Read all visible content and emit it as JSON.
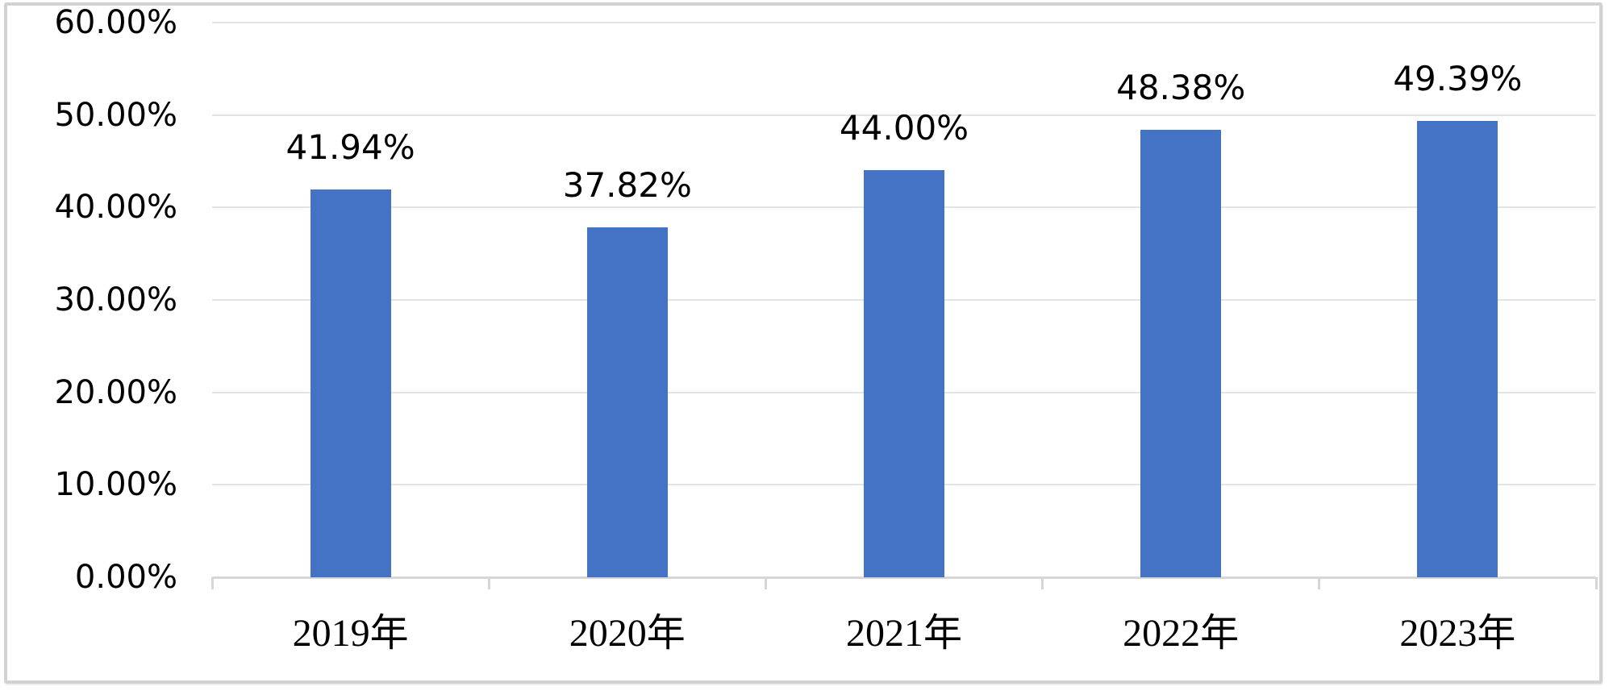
{
  "chart_data": {
    "type": "bar",
    "title": "",
    "xlabel": "",
    "ylabel": "",
    "categories": [
      "2019年",
      "2020年",
      "2021年",
      "2022年",
      "2023年"
    ],
    "values": [
      41.94,
      37.82,
      44.0,
      48.38,
      49.39
    ],
    "data_labels": [
      "41.94%",
      "37.82%",
      "44.00%",
      "48.38%",
      "49.39%"
    ],
    "y_ticks": [
      {
        "value": 0,
        "label": "0.00%"
      },
      {
        "value": 10,
        "label": "10.00%"
      },
      {
        "value": 20,
        "label": "20.00%"
      },
      {
        "value": 30,
        "label": "30.00%"
      },
      {
        "value": 40,
        "label": "40.00%"
      },
      {
        "value": 50,
        "label": "50.00%"
      },
      {
        "value": 60,
        "label": "60.00%"
      }
    ],
    "ylim": [
      0,
      60
    ],
    "grid": "horizontal",
    "legend": "none",
    "colors": {
      "bar": "#4472C4",
      "gridline": "#e4e4e4",
      "axis": "#d6d6d6",
      "text": "#000000",
      "frame_border": "#d2d2d2",
      "background": "#ffffff"
    }
  }
}
